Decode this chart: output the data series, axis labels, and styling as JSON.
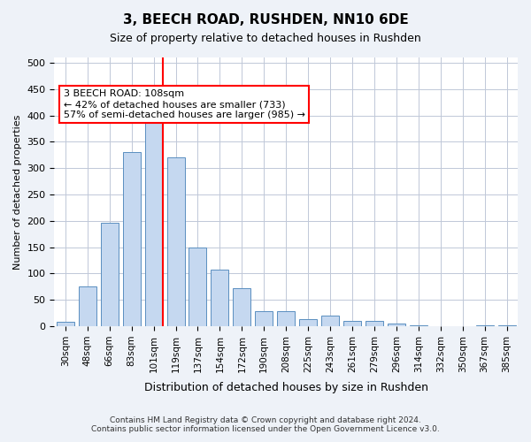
{
  "title": "3, BEECH ROAD, RUSHDEN, NN10 6DE",
  "subtitle": "Size of property relative to detached houses in Rushden",
  "xlabel": "Distribution of detached houses by size in Rushden",
  "ylabel": "Number of detached properties",
  "bar_color": "#c5d8f0",
  "bar_edge_color": "#5a8fc0",
  "categories": [
    "30sqm",
    "48sqm",
    "66sqm",
    "83sqm",
    "101sqm",
    "119sqm",
    "137sqm",
    "154sqm",
    "172sqm",
    "190sqm",
    "208sqm",
    "225sqm",
    "243sqm",
    "261sqm",
    "279sqm",
    "296sqm",
    "314sqm",
    "332sqm",
    "350sqm",
    "367sqm",
    "385sqm"
  ],
  "values": [
    8,
    75,
    197,
    330,
    387,
    320,
    150,
    107,
    72,
    28,
    28,
    14,
    20,
    10,
    10,
    5,
    2,
    0,
    0,
    2,
    2
  ],
  "ylim": [
    0,
    510
  ],
  "yticks": [
    0,
    50,
    100,
    150,
    200,
    250,
    300,
    350,
    400,
    450,
    500
  ],
  "vline_x": 4,
  "vline_color": "red",
  "annotation_text": "3 BEECH ROAD: 108sqm\n← 42% of detached houses are smaller (733)\n57% of semi-detached houses are larger (985) →",
  "annotation_box_color": "white",
  "annotation_box_edge": "red",
  "footer": "Contains HM Land Registry data © Crown copyright and database right 2024.\nContains public sector information licensed under the Open Government Licence v3.0.",
  "bg_color": "#eef2f8",
  "plot_bg_color": "white",
  "grid_color": "#c0c8d8"
}
